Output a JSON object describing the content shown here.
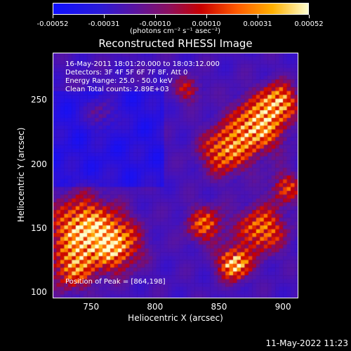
{
  "colorbar": {
    "ticks": [
      "-0.00052",
      "-0.00031",
      "-0.00010",
      "0.00010",
      "0.00031",
      "0.00052"
    ],
    "unit": "(photons cm⁻² s⁻¹ asec⁻²)",
    "colors": [
      "#1010ff",
      "#5a14a0",
      "#c80000",
      "#ff5a00",
      "#ffb000",
      "#ffffd0"
    ]
  },
  "chart_data": {
    "type": "heatmap",
    "title": "Reconstructed RHESSI Image",
    "xlabel": "Heliocentric X (arcsec)",
    "ylabel": "Heliocentric Y (arcsec)",
    "xlim": [
      720,
      912
    ],
    "ylim": [
      95,
      287
    ],
    "xticks": [
      "750",
      "800",
      "850",
      "900"
    ],
    "yticks": [
      "100",
      "150",
      "200",
      "250"
    ],
    "zlim": [
      -0.00052,
      0.00052
    ],
    "annotations": [
      "16-May-2011 18:01:20.000 to 18:03:12.000",
      "Detectors: 3F 4F 5F 6F 7F 8F, Att 0",
      "Energy Range: 25.0 - 50.0 keV",
      "Clean    Total counts: 2.89E+03"
    ],
    "peak_label": "Position of Peak = [864,198]"
  },
  "timestamp": "11-May-2022 11:23"
}
